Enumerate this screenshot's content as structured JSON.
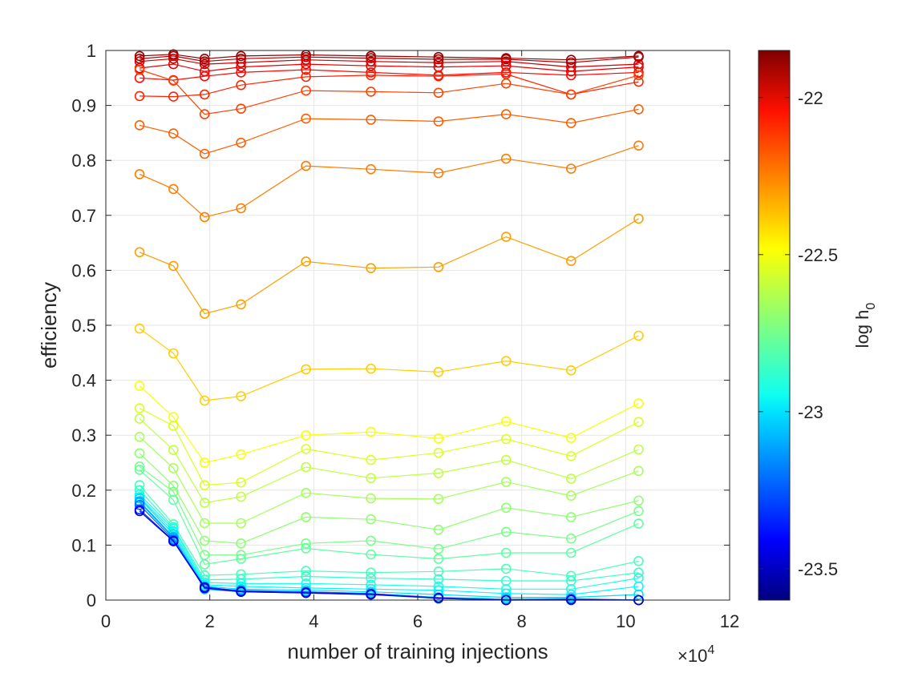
{
  "chart_data": {
    "type": "line",
    "title": "",
    "xlabel": "number of training injections",
    "ylabel": "efficiency",
    "x_multiplier_base": "×10",
    "x_multiplier_exp": "4",
    "xlim": [
      0,
      12
    ],
    "ylim": [
      0,
      1
    ],
    "x_ticks": [
      "0",
      "2",
      "4",
      "6",
      "8",
      "10",
      "12"
    ],
    "y_ticks": [
      "0",
      "0.1",
      "0.2",
      "0.3",
      "0.4",
      "0.5",
      "0.6",
      "0.7",
      "0.8",
      "0.9",
      "1"
    ],
    "grid": true,
    "colorbar": {
      "label_main": "log h",
      "label_sub": "0",
      "range": [
        -23.6,
        -21.85
      ],
      "ticks": [
        "-22",
        "-22.5",
        "-23",
        "-23.5"
      ],
      "tick_values": [
        -22,
        -22.5,
        -23,
        -23.5
      ]
    },
    "x": [
      0.65,
      1.3,
      1.9,
      2.6,
      3.85,
      5.1,
      6.4,
      7.7,
      8.95,
      10.25
    ],
    "series": [
      {
        "name": "-21.88",
        "values": [
          0.99,
          0.993,
          0.985,
          0.99,
          0.992,
          0.99,
          0.988,
          0.986,
          0.983,
          0.99
        ]
      },
      {
        "name": "-21.93",
        "values": [
          0.985,
          0.99,
          0.98,
          0.985,
          0.988,
          0.986,
          0.984,
          0.984,
          0.978,
          0.988
        ]
      },
      {
        "name": "-21.98",
        "values": [
          0.98,
          0.985,
          0.975,
          0.978,
          0.983,
          0.98,
          0.978,
          0.98,
          0.97,
          0.975
        ]
      },
      {
        "name": "-22.03",
        "values": [
          0.968,
          0.975,
          0.962,
          0.97,
          0.975,
          0.972,
          0.97,
          0.972,
          0.962,
          0.97
        ]
      },
      {
        "name": "-22.08",
        "values": [
          0.95,
          0.946,
          0.953,
          0.96,
          0.965,
          0.96,
          0.955,
          0.96,
          0.955,
          0.96
        ]
      },
      {
        "name": "-22.13",
        "values": [
          0.917,
          0.916,
          0.92,
          0.937,
          0.952,
          0.955,
          0.953,
          0.957,
          0.92,
          0.943
        ]
      },
      {
        "name": "-22.18",
        "values": [
          0.965,
          0.945,
          0.884,
          0.894,
          0.927,
          0.925,
          0.923,
          0.94,
          0.92,
          0.955
        ]
      },
      {
        "name": "-22.23",
        "values": [
          0.864,
          0.849,
          0.812,
          0.832,
          0.876,
          0.874,
          0.871,
          0.884,
          0.868,
          0.893
        ]
      },
      {
        "name": "-22.28",
        "values": [
          0.775,
          0.748,
          0.697,
          0.713,
          0.79,
          0.784,
          0.777,
          0.803,
          0.785,
          0.827
        ]
      },
      {
        "name": "-22.34",
        "values": [
          0.633,
          0.608,
          0.521,
          0.538,
          0.616,
          0.604,
          0.606,
          0.661,
          0.617,
          0.694
        ]
      },
      {
        "name": "-22.42",
        "values": [
          0.494,
          0.449,
          0.363,
          0.371,
          0.42,
          0.421,
          0.415,
          0.435,
          0.418,
          0.481
        ]
      },
      {
        "name": "-22.52",
        "values": [
          0.39,
          0.333,
          0.25,
          0.265,
          0.3,
          0.306,
          0.294,
          0.325,
          0.295,
          0.358
        ]
      },
      {
        "name": "-22.57",
        "values": [
          0.349,
          0.317,
          0.209,
          0.214,
          0.275,
          0.255,
          0.268,
          0.293,
          0.262,
          0.324
        ]
      },
      {
        "name": "-22.62",
        "values": [
          0.33,
          0.273,
          0.177,
          0.188,
          0.242,
          0.222,
          0.231,
          0.255,
          0.221,
          0.274
        ]
      },
      {
        "name": "-22.66",
        "values": [
          0.297,
          0.24,
          0.14,
          0.14,
          0.195,
          0.185,
          0.184,
          0.215,
          0.19,
          0.235
        ]
      },
      {
        "name": "-22.7",
        "values": [
          0.267,
          0.208,
          0.108,
          0.103,
          0.151,
          0.147,
          0.128,
          0.168,
          0.151,
          0.181
        ]
      },
      {
        "name": "-22.74",
        "values": [
          0.243,
          0.197,
          0.082,
          0.082,
          0.103,
          0.108,
          0.093,
          0.124,
          0.112,
          0.162
        ]
      },
      {
        "name": "-22.78",
        "values": [
          0.237,
          0.182,
          0.065,
          0.075,
          0.094,
          0.083,
          0.075,
          0.086,
          0.086,
          0.139
        ]
      },
      {
        "name": "-22.82",
        "values": [
          0.209,
          0.138,
          0.045,
          0.047,
          0.053,
          0.05,
          0.052,
          0.057,
          0.044,
          0.071
        ]
      },
      {
        "name": "-22.86",
        "values": [
          0.2,
          0.133,
          0.037,
          0.038,
          0.043,
          0.04,
          0.038,
          0.035,
          0.035,
          0.05
        ]
      },
      {
        "name": "-22.9",
        "values": [
          0.192,
          0.13,
          0.032,
          0.03,
          0.03,
          0.028,
          0.025,
          0.02,
          0.02,
          0.04
        ]
      },
      {
        "name": "-22.95",
        "values": [
          0.187,
          0.125,
          0.028,
          0.025,
          0.022,
          0.02,
          0.018,
          0.012,
          0.01,
          0.025
        ]
      },
      {
        "name": "-23.0",
        "values": [
          0.185,
          0.12,
          0.025,
          0.02,
          0.018,
          0.015,
          0.01,
          0.005,
          0.005,
          0.01
        ]
      },
      {
        "name": "-23.05",
        "values": [
          0.18,
          0.115,
          0.022,
          0.018,
          0.015,
          0.012,
          0.005,
          0.002,
          0.003,
          0.0
        ]
      },
      {
        "name": "-23.1",
        "values": [
          0.178,
          0.113,
          0.02,
          0.015,
          0.013,
          0.01,
          0.003,
          0.0,
          0.002,
          0.0
        ]
      },
      {
        "name": "-23.2",
        "values": [
          0.173,
          0.11,
          0.023,
          0.017,
          0.015,
          0.012,
          0.004,
          0.0,
          0.001,
          0.0
        ]
      },
      {
        "name": "-23.3",
        "values": [
          0.165,
          0.108,
          0.024,
          0.016,
          0.014,
          0.011,
          0.003,
          0.0,
          0.0,
          0.0
        ]
      },
      {
        "name": "-23.45",
        "values": [
          0.162,
          0.107,
          0.022,
          0.015,
          0.013,
          0.01,
          0.004,
          0.0,
          0.001,
          0.0
        ]
      }
    ]
  }
}
